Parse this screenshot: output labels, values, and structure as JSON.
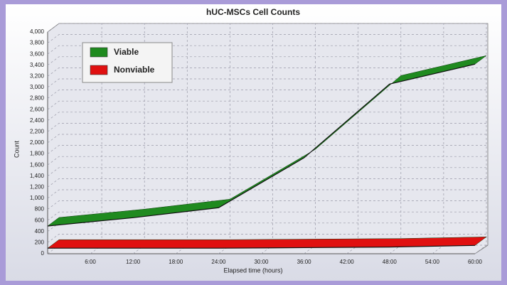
{
  "chart_data": {
    "type": "line",
    "title": "hUC-MSCs Cell Counts",
    "x_label": "Elapsed time (hours)",
    "y_label": "Count",
    "x": [
      0,
      12,
      24,
      36,
      48,
      60
    ],
    "series": [
      {
        "name": "Viable",
        "color": "#1f8a1f",
        "values": [
          500,
          650,
          830,
          1730,
          3060,
          3420
        ]
      },
      {
        "name": "Nonviable",
        "color": "#e01010",
        "values": [
          100,
          100,
          100,
          110,
          120,
          150
        ]
      }
    ],
    "xlim": [
      0,
      60
    ],
    "xticks": [
      {
        "value": 6,
        "label": "6:00"
      },
      {
        "value": 12,
        "label": "12:00"
      },
      {
        "value": 18,
        "label": "18:00"
      },
      {
        "value": 24,
        "label": "24:00"
      },
      {
        "value": 30,
        "label": "30:00"
      },
      {
        "value": 36,
        "label": "36:00"
      },
      {
        "value": 42,
        "label": "42:00"
      },
      {
        "value": 48,
        "label": "48:00"
      },
      {
        "value": 54,
        "label": "54:00"
      },
      {
        "value": 60,
        "label": "60:00"
      }
    ],
    "ylim": [
      0,
      4000
    ],
    "yticks": [
      0,
      200,
      400,
      600,
      800,
      {
        "value": 1000,
        "label": "1,000"
      },
      {
        "value": 1200,
        "label": "1,200"
      },
      {
        "value": 1400,
        "label": "1,400"
      },
      {
        "value": 1600,
        "label": "1,600"
      },
      {
        "value": 1800,
        "label": "1,800"
      },
      {
        "value": 2000,
        "label": "2,000"
      },
      {
        "value": 2200,
        "label": "2,200"
      },
      {
        "value": 2400,
        "label": "2,400"
      },
      {
        "value": 2600,
        "label": "2,600"
      },
      {
        "value": 2800,
        "label": "2,800"
      },
      {
        "value": 3000,
        "label": "3,000"
      },
      {
        "value": 3200,
        "label": "3,200"
      },
      {
        "value": 3400,
        "label": "3,400"
      },
      {
        "value": 3600,
        "label": "3,600"
      },
      {
        "value": 3800,
        "label": "3,800"
      },
      {
        "value": 4000,
        "label": "4,000"
      }
    ],
    "grid": true
  }
}
